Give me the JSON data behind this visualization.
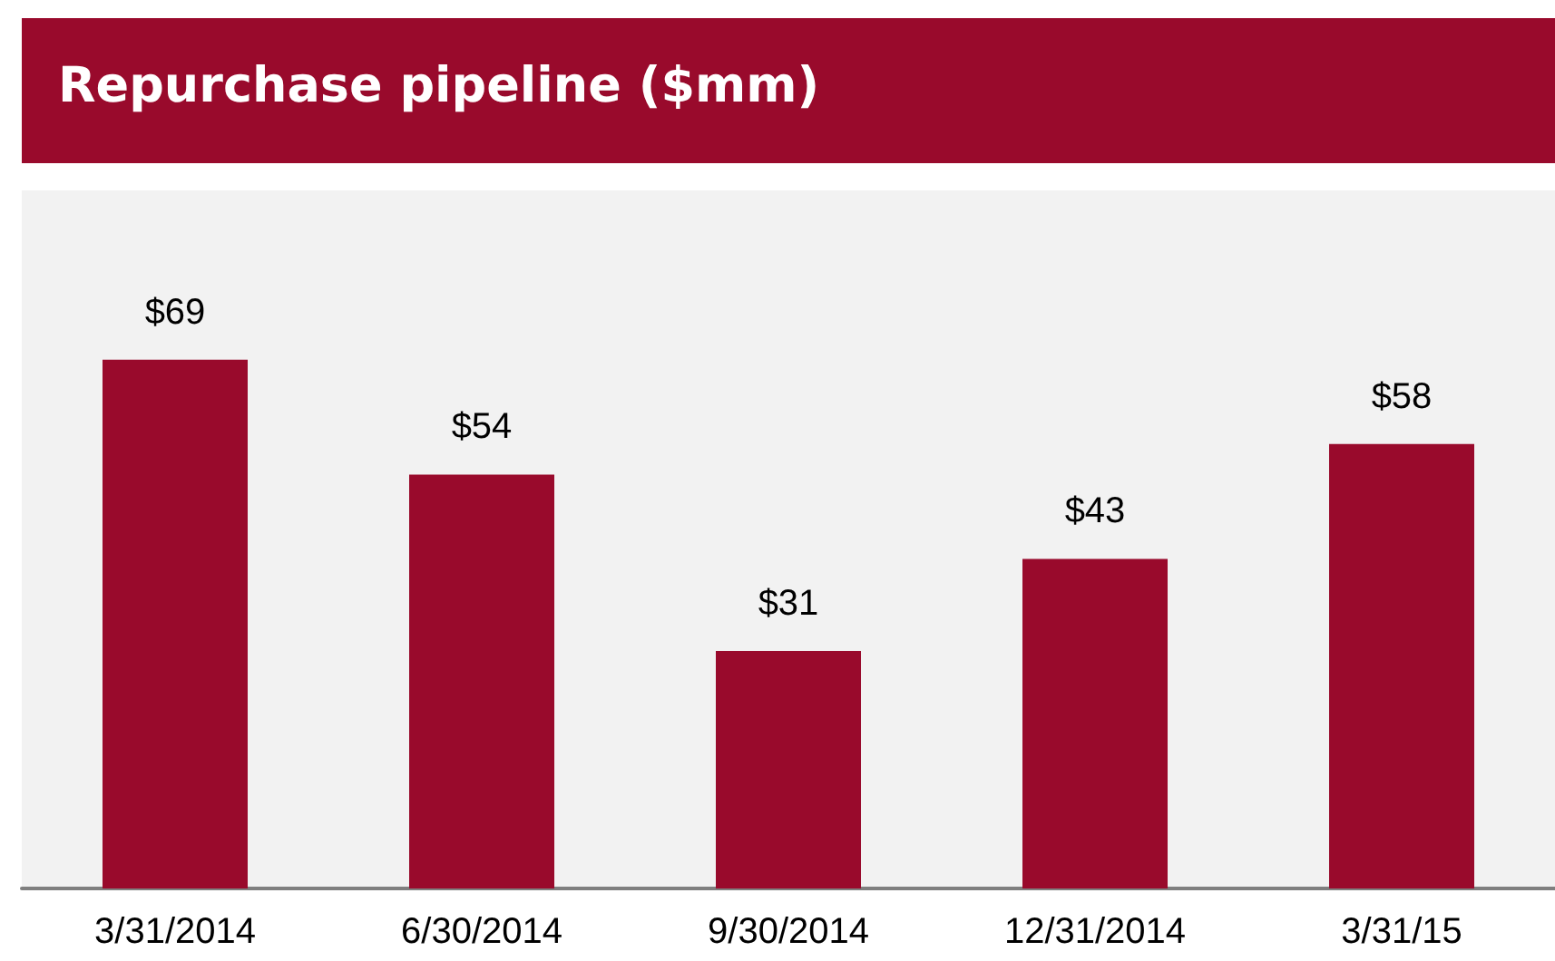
{
  "chart_data": {
    "type": "bar",
    "title": "Repurchase pipeline ($mm)",
    "categories": [
      "3/31/2014",
      "6/30/2014",
      "9/30/2014",
      "12/31/2014",
      "3/31/15"
    ],
    "values": [
      69,
      54,
      31,
      43,
      58
    ],
    "value_labels": [
      "$69",
      "$54",
      "$31",
      "$43",
      "$58"
    ],
    "color": "#990a2c"
  }
}
